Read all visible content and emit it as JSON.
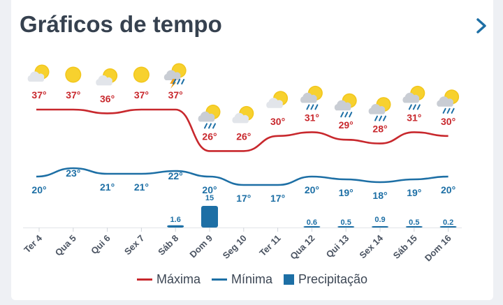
{
  "header": {
    "title": "Gráficos de tempo"
  },
  "colors": {
    "max": "#c8282d",
    "min": "#1d6fa5",
    "precip": "#1d6fa5",
    "title": "#36414f"
  },
  "legend": {
    "max_label": "Máxima",
    "min_label": "Mínima",
    "precip_label": "Precipitação"
  },
  "chart_data": {
    "type": "line",
    "categories": [
      "Ter 4",
      "Qua 5",
      "Qui 6",
      "Sex 7",
      "Sáb 8",
      "Dom 9",
      "Seg 10",
      "Ter 11",
      "Qua 12",
      "Qui 13",
      "Sex 14",
      "Sáb 15",
      "Dom 16"
    ],
    "icons": [
      "sun-cloud",
      "sun",
      "sun-cloud",
      "sun",
      "storm",
      "rain",
      "sun-cloud",
      "sun-cloud",
      "rain",
      "rain",
      "rain",
      "rain",
      "rain"
    ],
    "series": [
      {
        "name": "Máxima",
        "values": [
          37,
          37,
          36,
          37,
          37,
          26,
          26,
          30,
          31,
          29,
          28,
          31,
          30
        ],
        "labels": [
          "37°",
          "37°",
          "36°",
          "37°",
          "37°",
          "26°",
          "26°",
          "30°",
          "31°",
          "29°",
          "28°",
          "31°",
          "30°"
        ]
      },
      {
        "name": "Mínima",
        "values": [
          20,
          23,
          21,
          21,
          22,
          20,
          17,
          17,
          20,
          19,
          18,
          19,
          20
        ],
        "labels": [
          "20°",
          "23°",
          "21°",
          "21°",
          "22°",
          "20°",
          "17°",
          "17°",
          "20°",
          "19°",
          "18°",
          "19°",
          "20°"
        ]
      }
    ],
    "precipitation": {
      "name": "Precipitação",
      "values": [
        0,
        0,
        0,
        0,
        1.6,
        15,
        0,
        0,
        0.6,
        0.5,
        0.9,
        0.5,
        0.2
      ],
      "labels": [
        "",
        "",
        "",
        "",
        "1.6",
        "15",
        "",
        "",
        "0.6",
        "0.5",
        "0.9",
        "0.5",
        "0.2"
      ]
    }
  }
}
